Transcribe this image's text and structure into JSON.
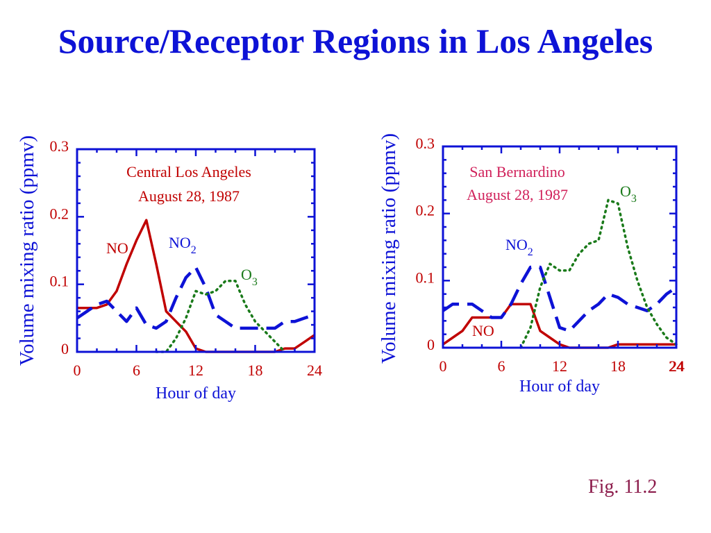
{
  "title": "Source/Receptor Regions in Los Angeles",
  "figure_label": "Fig. 11.2",
  "colors": {
    "title": "#0d12d6",
    "axis": "#0d12d6",
    "ticklabel": "#c00000",
    "NO": "#c00000",
    "NO2": "#0d12d6",
    "O3": "#1a7a1a",
    "fig": "#8b1a4a",
    "sb_annotation": "#d0205a"
  },
  "chart_data": [
    {
      "type": "line",
      "annotation": [
        "Central Los Angeles",
        "August 28, 1987"
      ],
      "xlabel": "Hour of day",
      "ylabel": "Volume mixing ratio (ppmv)",
      "xlim": [
        0,
        24
      ],
      "ylim": [
        0,
        0.3
      ],
      "xticks": [
        "0",
        "6",
        "12",
        "18",
        "24"
      ],
      "yticks": [
        "0",
        "0.1",
        "0.2",
        "0.3"
      ],
      "series": [
        {
          "name": "NO",
          "label": "NO",
          "sub": "",
          "x": [
            0,
            1,
            2,
            3,
            4,
            5,
            6,
            7,
            8,
            9,
            10,
            11,
            12,
            13,
            14,
            15,
            16,
            17,
            18,
            19,
            20,
            21,
            22,
            23,
            24
          ],
          "y": [
            0.065,
            0.065,
            0.065,
            0.07,
            0.09,
            0.13,
            0.165,
            0.195,
            0.13,
            0.06,
            0.045,
            0.03,
            0.005,
            0,
            0,
            0,
            0,
            0,
            0,
            0,
            0,
            0.005,
            0.005,
            0.015,
            0.025
          ]
        },
        {
          "name": "NO2",
          "label": "NO",
          "sub": "2",
          "x": [
            0,
            2,
            3,
            4,
            5,
            6,
            7,
            8,
            9,
            10,
            11,
            12,
            13,
            14,
            15,
            16,
            17,
            18,
            19,
            20,
            21,
            22,
            23,
            24
          ],
          "y": [
            0.05,
            0.07,
            0.075,
            0.06,
            0.045,
            0.065,
            0.04,
            0.035,
            0.045,
            0.08,
            0.11,
            0.125,
            0.095,
            0.055,
            0.045,
            0.035,
            0.035,
            0.035,
            0.035,
            0.035,
            0.045,
            0.045,
            0.05,
            0.055
          ]
        },
        {
          "name": "O3",
          "label": "O",
          "sub": "3",
          "x": [
            8,
            9,
            10,
            11,
            12,
            13,
            14,
            15,
            16,
            17,
            18,
            19,
            20,
            21
          ],
          "y": [
            0,
            0,
            0.02,
            0.05,
            0.09,
            0.085,
            0.09,
            0.105,
            0.105,
            0.07,
            0.045,
            0.03,
            0.015,
            0
          ]
        }
      ]
    },
    {
      "type": "line",
      "annotation": [
        "San Bernardino",
        "August 28, 1987"
      ],
      "xlabel": "Hour of day",
      "ylabel": "Volume mixing ratio (ppmv)",
      "xlim": [
        0,
        24
      ],
      "ylim": [
        0,
        0.3
      ],
      "xticks": [
        "0",
        "6",
        "12",
        "18",
        "24",
        "24"
      ],
      "yticks": [
        "0",
        "0.1",
        "0.2",
        "0.3"
      ],
      "series": [
        {
          "name": "NO",
          "label": "NO",
          "sub": "",
          "x": [
            0,
            1,
            2,
            3,
            4,
            5,
            6,
            7,
            8,
            9,
            10,
            11,
            12,
            13,
            14,
            15,
            16,
            17,
            18,
            19,
            20,
            21,
            22,
            23,
            24
          ],
          "y": [
            0.005,
            0.015,
            0.025,
            0.045,
            0.045,
            0.045,
            0.045,
            0.065,
            0.065,
            0.065,
            0.025,
            0.015,
            0.005,
            0,
            0,
            0,
            0,
            0,
            0.005,
            0.005,
            0.005,
            0.005,
            0.005,
            0.005,
            0.005
          ]
        },
        {
          "name": "NO2",
          "label": "NO",
          "sub": "2",
          "x": [
            0,
            1,
            2,
            3,
            4,
            5,
            6,
            7,
            8,
            9,
            10,
            11,
            12,
            13,
            14,
            15,
            16,
            17,
            18,
            19,
            20,
            21,
            22,
            23,
            24
          ],
          "y": [
            0.055,
            0.065,
            0.065,
            0.065,
            0.055,
            0.045,
            0.045,
            0.065,
            0.095,
            0.12,
            0.12,
            0.075,
            0.03,
            0.025,
            0.04,
            0.055,
            0.065,
            0.08,
            0.075,
            0.065,
            0.06,
            0.055,
            0.065,
            0.08,
            0.09
          ]
        },
        {
          "name": "O3",
          "label": "O",
          "sub": "3",
          "x": [
            8,
            9,
            10,
            11,
            12,
            13,
            14,
            15,
            16,
            17,
            18,
            19,
            20,
            21,
            22,
            23,
            24
          ],
          "y": [
            0,
            0.03,
            0.09,
            0.125,
            0.115,
            0.115,
            0.14,
            0.155,
            0.16,
            0.22,
            0.215,
            0.15,
            0.1,
            0.06,
            0.035,
            0.015,
            0.005
          ]
        }
      ]
    }
  ]
}
